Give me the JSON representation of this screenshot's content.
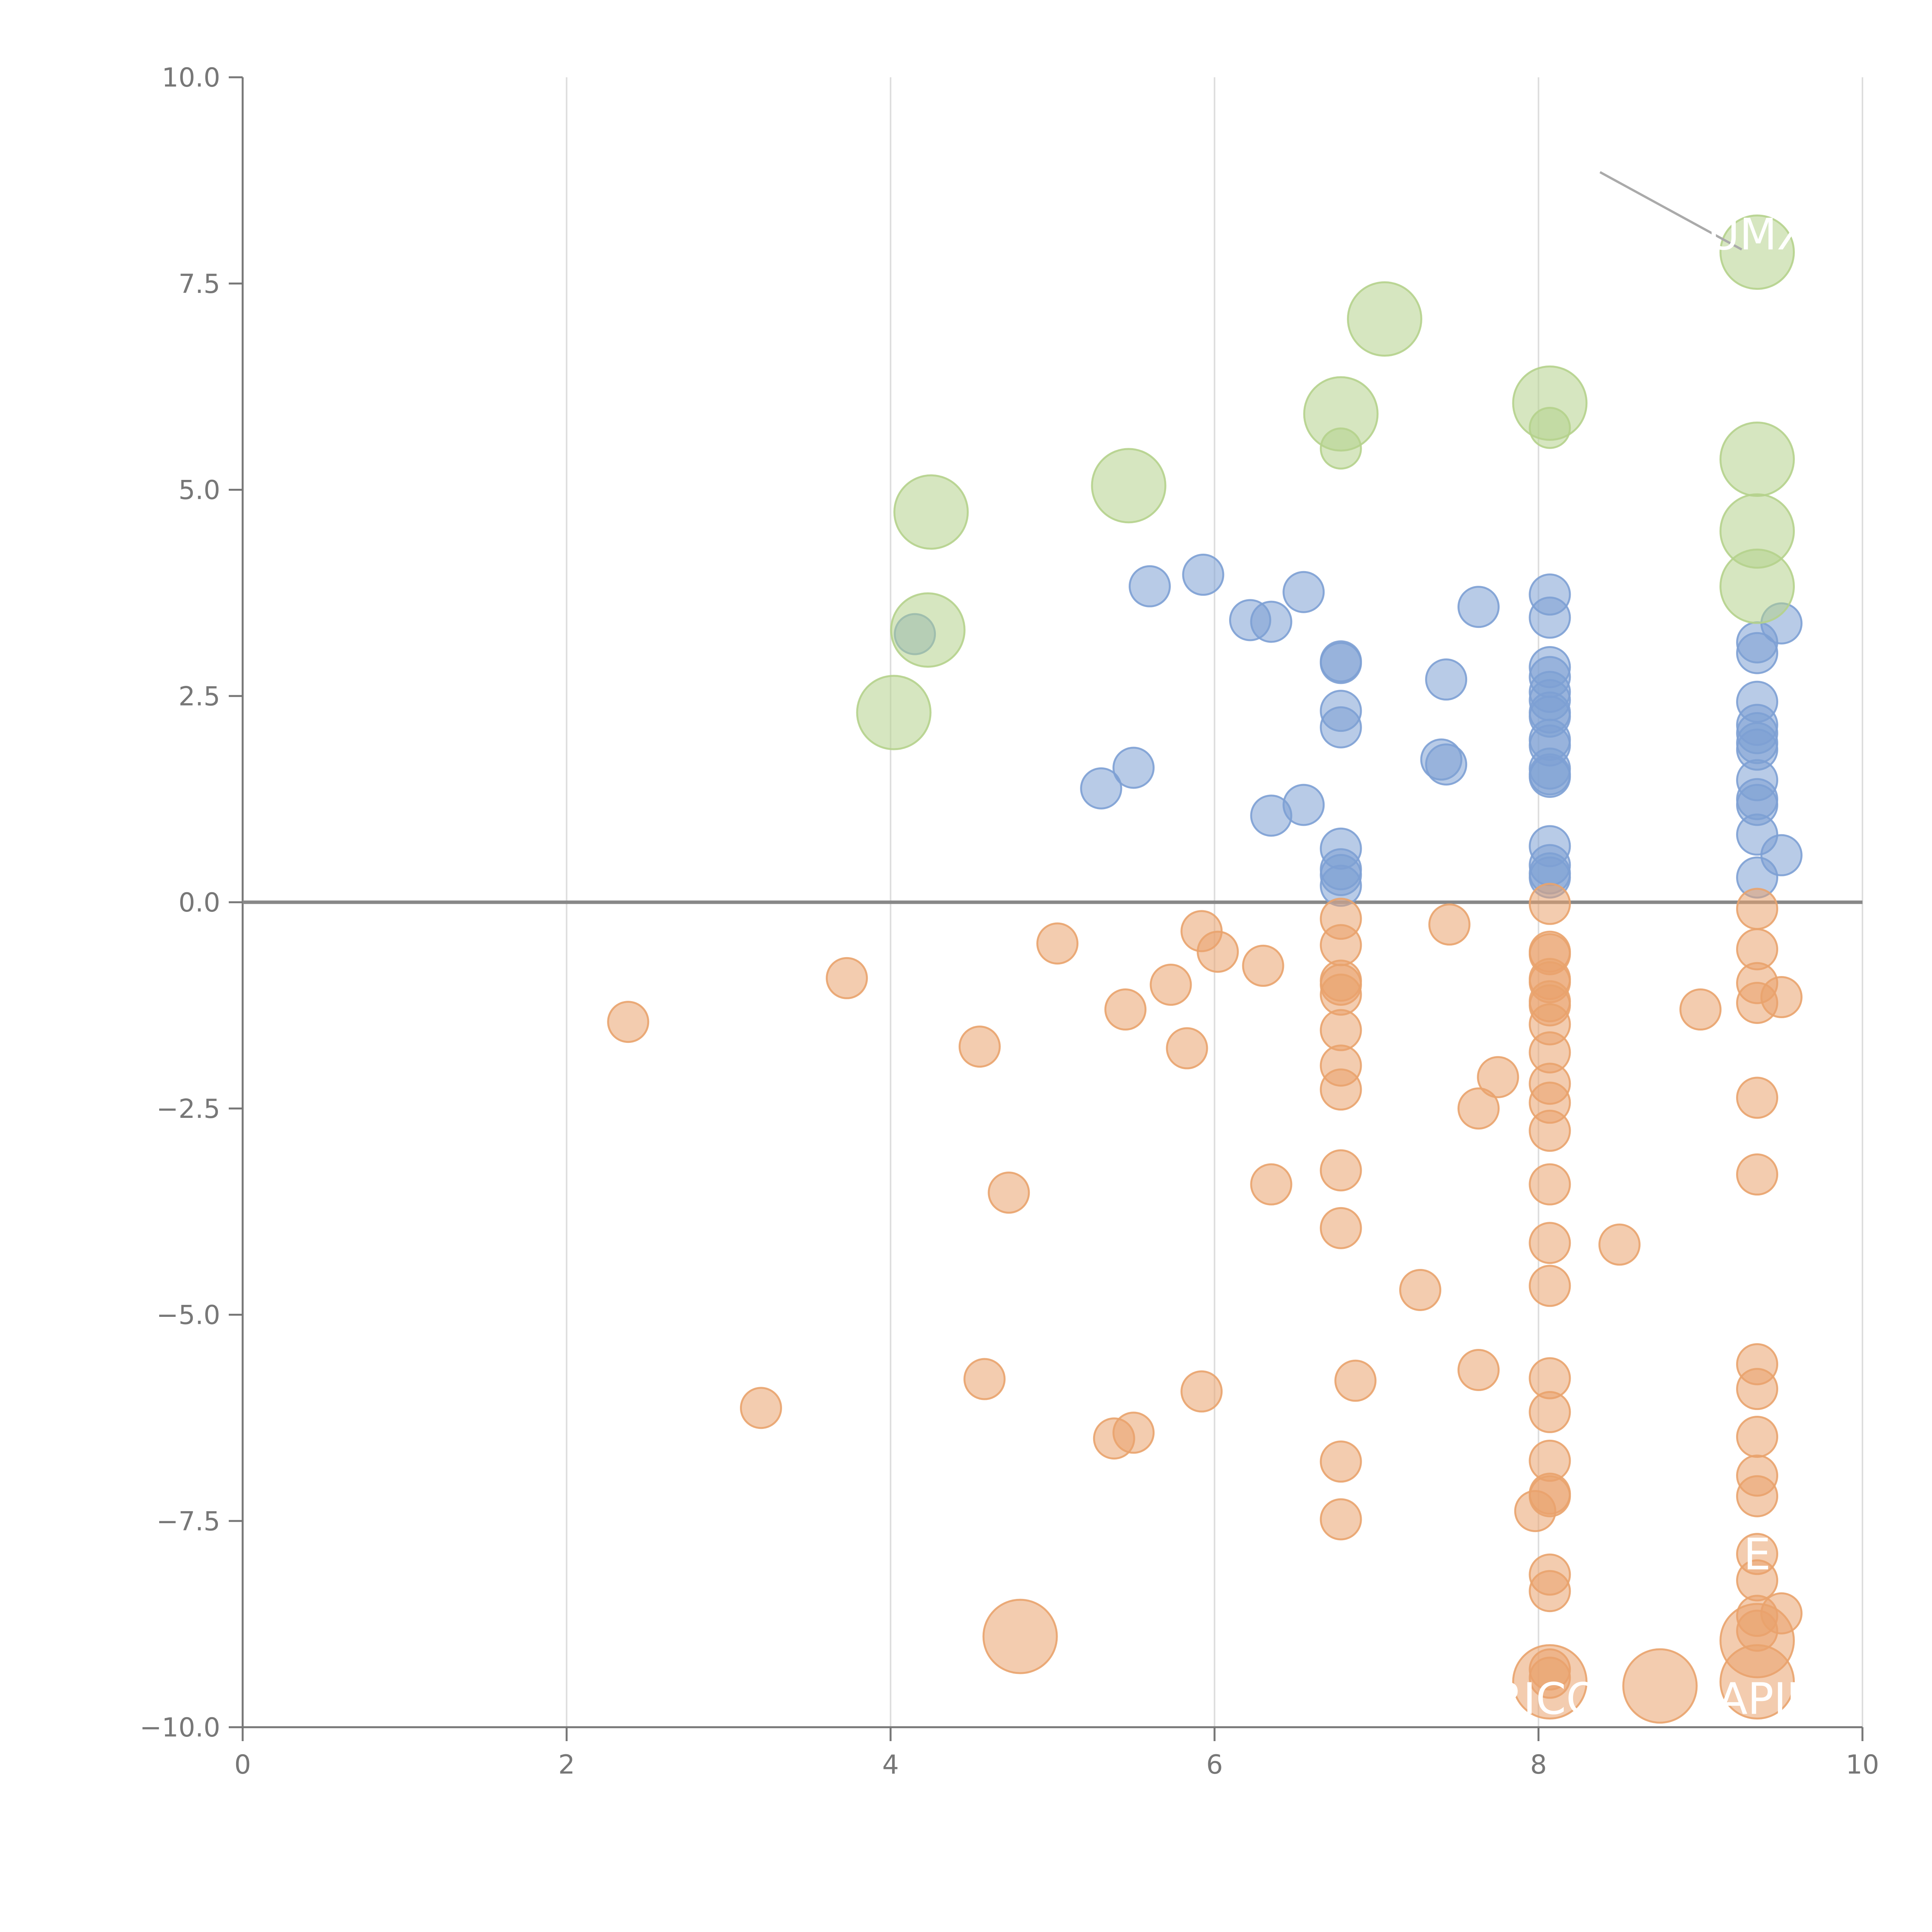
{
  "chart_data": {
    "type": "scatter",
    "title": "",
    "xlabel": "",
    "ylabel": "",
    "xlim": [
      0,
      10
    ],
    "ylim": [
      -10,
      10
    ],
    "xticks": [
      "0",
      "2",
      "4",
      "6",
      "8",
      "10"
    ],
    "yticks": [
      "−10.0",
      "−7.5",
      "−5.0",
      "−2.5",
      "0.0",
      "2.5",
      "5.0",
      "7.5",
      "10.0"
    ],
    "x_gridlines": true,
    "y_gridlines": false,
    "zero_line": true,
    "colors": {
      "blue": "#7da0d4",
      "orange": "#e9a36d",
      "green": "#b5d18c",
      "axis": "#777777",
      "grid": "#dddddd",
      "zero_line": "#888888"
    },
    "series": [
      {
        "color": "blue",
        "size_scale": "small",
        "points": [
          [
            4.15,
            3.25
          ],
          [
            5.3,
            1.38
          ],
          [
            5.5,
            1.63
          ],
          [
            5.6,
            3.83
          ],
          [
            5.93,
            3.97
          ],
          [
            6.22,
            3.42
          ],
          [
            6.35,
            3.4
          ],
          [
            6.35,
            1.05
          ],
          [
            6.55,
            3.76
          ],
          [
            6.55,
            1.18
          ],
          [
            6.78,
            2.92
          ],
          [
            6.78,
            2.9
          ],
          [
            6.78,
            2.32
          ],
          [
            6.78,
            2.12
          ],
          [
            6.78,
            0.65
          ],
          [
            6.78,
            0.4
          ],
          [
            6.78,
            0.33
          ],
          [
            6.78,
            0.2
          ],
          [
            7.4,
            1.73
          ],
          [
            7.43,
            1.67
          ],
          [
            7.43,
            2.7
          ],
          [
            7.63,
            3.58
          ],
          [
            8.07,
            3.73
          ],
          [
            8.07,
            3.45
          ],
          [
            8.07,
            2.85
          ],
          [
            8.07,
            2.73
          ],
          [
            8.07,
            2.55
          ],
          [
            8.07,
            2.45
          ],
          [
            8.07,
            2.3
          ],
          [
            8.07,
            2.25
          ],
          [
            8.07,
            1.97
          ],
          [
            8.07,
            1.9
          ],
          [
            8.07,
            1.62
          ],
          [
            8.07,
            1.55
          ],
          [
            8.07,
            1.52
          ],
          [
            8.07,
            0.68
          ],
          [
            8.07,
            0.45
          ],
          [
            8.07,
            0.35
          ],
          [
            8.07,
            0.3
          ],
          [
            9.35,
            3.15
          ],
          [
            9.35,
            3.02
          ],
          [
            9.35,
            2.43
          ],
          [
            9.35,
            2.15
          ],
          [
            9.35,
            2.05
          ],
          [
            9.35,
            1.93
          ],
          [
            9.35,
            1.85
          ],
          [
            9.35,
            1.48
          ],
          [
            9.35,
            1.25
          ],
          [
            9.35,
            1.18
          ],
          [
            9.35,
            0.82
          ],
          [
            9.35,
            0.3
          ],
          [
            9.5,
            3.38
          ],
          [
            9.5,
            0.57
          ]
        ]
      },
      {
        "color": "orange",
        "size_scale": "small",
        "points": [
          [
            2.38,
            -1.45
          ],
          [
            3.2,
            -6.13
          ],
          [
            3.73,
            -0.92
          ],
          [
            4.55,
            -1.75
          ],
          [
            4.58,
            -5.78
          ],
          [
            4.73,
            -3.52
          ],
          [
            5.03,
            -0.5
          ],
          [
            5.38,
            -6.5
          ],
          [
            5.45,
            -1.3
          ],
          [
            5.5,
            -6.43
          ],
          [
            5.73,
            -1.0
          ],
          [
            5.83,
            -1.77
          ],
          [
            5.92,
            -0.35
          ],
          [
            5.92,
            -5.93
          ],
          [
            6.02,
            -0.6
          ],
          [
            6.3,
            -0.77
          ],
          [
            6.35,
            -3.42
          ],
          [
            6.78,
            -0.2
          ],
          [
            6.78,
            -0.52
          ],
          [
            6.78,
            -0.95
          ],
          [
            6.78,
            -1.0
          ],
          [
            6.78,
            -1.12
          ],
          [
            6.78,
            -1.55
          ],
          [
            6.78,
            -1.98
          ],
          [
            6.78,
            -2.27
          ],
          [
            6.78,
            -3.25
          ],
          [
            6.78,
            -3.95
          ],
          [
            6.78,
            -6.78
          ],
          [
            6.78,
            -7.48
          ],
          [
            6.87,
            -5.8
          ],
          [
            7.27,
            -4.7
          ],
          [
            7.45,
            -0.27
          ],
          [
            7.63,
            -5.67
          ],
          [
            7.63,
            -2.5
          ],
          [
            7.75,
            -2.12
          ],
          [
            7.98,
            -7.38
          ],
          [
            8.07,
            -0.02
          ],
          [
            8.07,
            -0.6
          ],
          [
            8.07,
            -0.63
          ],
          [
            8.07,
            -0.93
          ],
          [
            8.07,
            -0.97
          ],
          [
            8.07,
            -1.2
          ],
          [
            8.07,
            -1.25
          ],
          [
            8.07,
            -1.48
          ],
          [
            8.07,
            -1.82
          ],
          [
            8.07,
            -2.2
          ],
          [
            8.07,
            -2.43
          ],
          [
            8.07,
            -2.77
          ],
          [
            8.07,
            -3.42
          ],
          [
            8.07,
            -4.13
          ],
          [
            8.07,
            -4.65
          ],
          [
            8.07,
            -5.77
          ],
          [
            8.07,
            -6.18
          ],
          [
            8.07,
            -6.77
          ],
          [
            8.07,
            -7.17
          ],
          [
            8.07,
            -7.2
          ],
          [
            8.07,
            -8.15
          ],
          [
            8.07,
            -8.35
          ],
          [
            8.07,
            -9.3
          ],
          [
            8.07,
            -9.4
          ],
          [
            8.5,
            -4.15
          ],
          [
            9.0,
            -1.3
          ],
          [
            9.35,
            -0.08
          ],
          [
            9.35,
            -0.57
          ],
          [
            9.35,
            -0.98
          ],
          [
            9.35,
            -1.22
          ],
          [
            9.35,
            -2.37
          ],
          [
            9.35,
            -3.3
          ],
          [
            9.35,
            -5.6
          ],
          [
            9.35,
            -5.9
          ],
          [
            9.35,
            -6.48
          ],
          [
            9.35,
            -6.95
          ],
          [
            9.35,
            -7.2
          ],
          [
            9.35,
            -7.9
          ],
          [
            9.35,
            -8.22
          ],
          [
            9.35,
            -8.65
          ],
          [
            9.35,
            -8.83
          ],
          [
            9.5,
            -1.15
          ],
          [
            9.5,
            -8.62
          ]
        ]
      },
      {
        "color": "green",
        "size_scale": "mixed",
        "points": [
          [
            4.02,
            2.3,
            "large"
          ],
          [
            4.25,
            4.73,
            "large"
          ],
          [
            4.23,
            3.3,
            "large"
          ],
          [
            5.47,
            5.05,
            "large"
          ],
          [
            6.78,
            5.92,
            "large"
          ],
          [
            6.78,
            5.5,
            "small"
          ],
          [
            7.05,
            7.07,
            "large"
          ],
          [
            8.07,
            6.05,
            "large"
          ],
          [
            8.07,
            5.75,
            "small"
          ],
          [
            9.35,
            7.88,
            "large"
          ],
          [
            9.35,
            5.37,
            "large"
          ],
          [
            9.35,
            4.5,
            "large"
          ],
          [
            9.35,
            3.83,
            "large"
          ]
        ]
      },
      {
        "color": "orange",
        "size_scale": "large",
        "points": [
          [
            4.8,
            -8.9
          ],
          [
            8.07,
            -9.45
          ],
          [
            8.75,
            -9.5
          ],
          [
            9.35,
            -8.95
          ],
          [
            9.35,
            -9.45
          ]
        ]
      }
    ],
    "annotations": [
      {
        "text": "UMX",
        "x": 9.35,
        "y": 8.1
      },
      {
        "text": "E",
        "x": 9.35,
        "y": -7.9
      },
      {
        "text": "RICO",
        "x": 8.05,
        "y": -9.65
      },
      {
        "text": "APIP",
        "x": 9.4,
        "y": -9.65
      }
    ]
  }
}
